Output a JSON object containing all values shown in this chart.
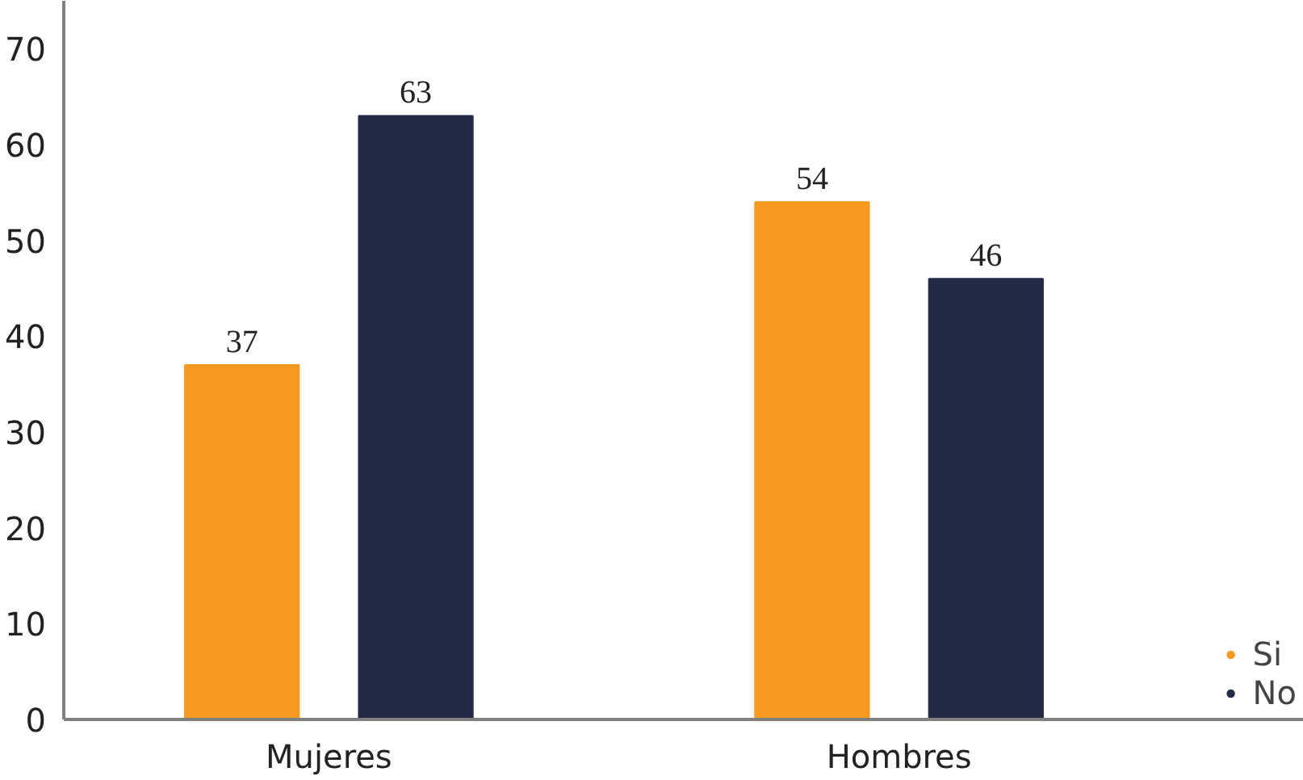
{
  "chart_data": {
    "type": "bar",
    "categories": [
      "Mujeres",
      "Hombres"
    ],
    "series": [
      {
        "name": "Si",
        "color": "#f7991e",
        "values": [
          37,
          54
        ]
      },
      {
        "name": "No",
        "color": "#222a45",
        "values": [
          63,
          46
        ]
      }
    ],
    "ylim": [
      0,
      75
    ],
    "yticks": [
      0,
      10,
      20,
      30,
      40,
      50,
      60,
      70
    ],
    "grid": false,
    "legend": "bottom right",
    "data_labels": true,
    "marker": "circle"
  }
}
